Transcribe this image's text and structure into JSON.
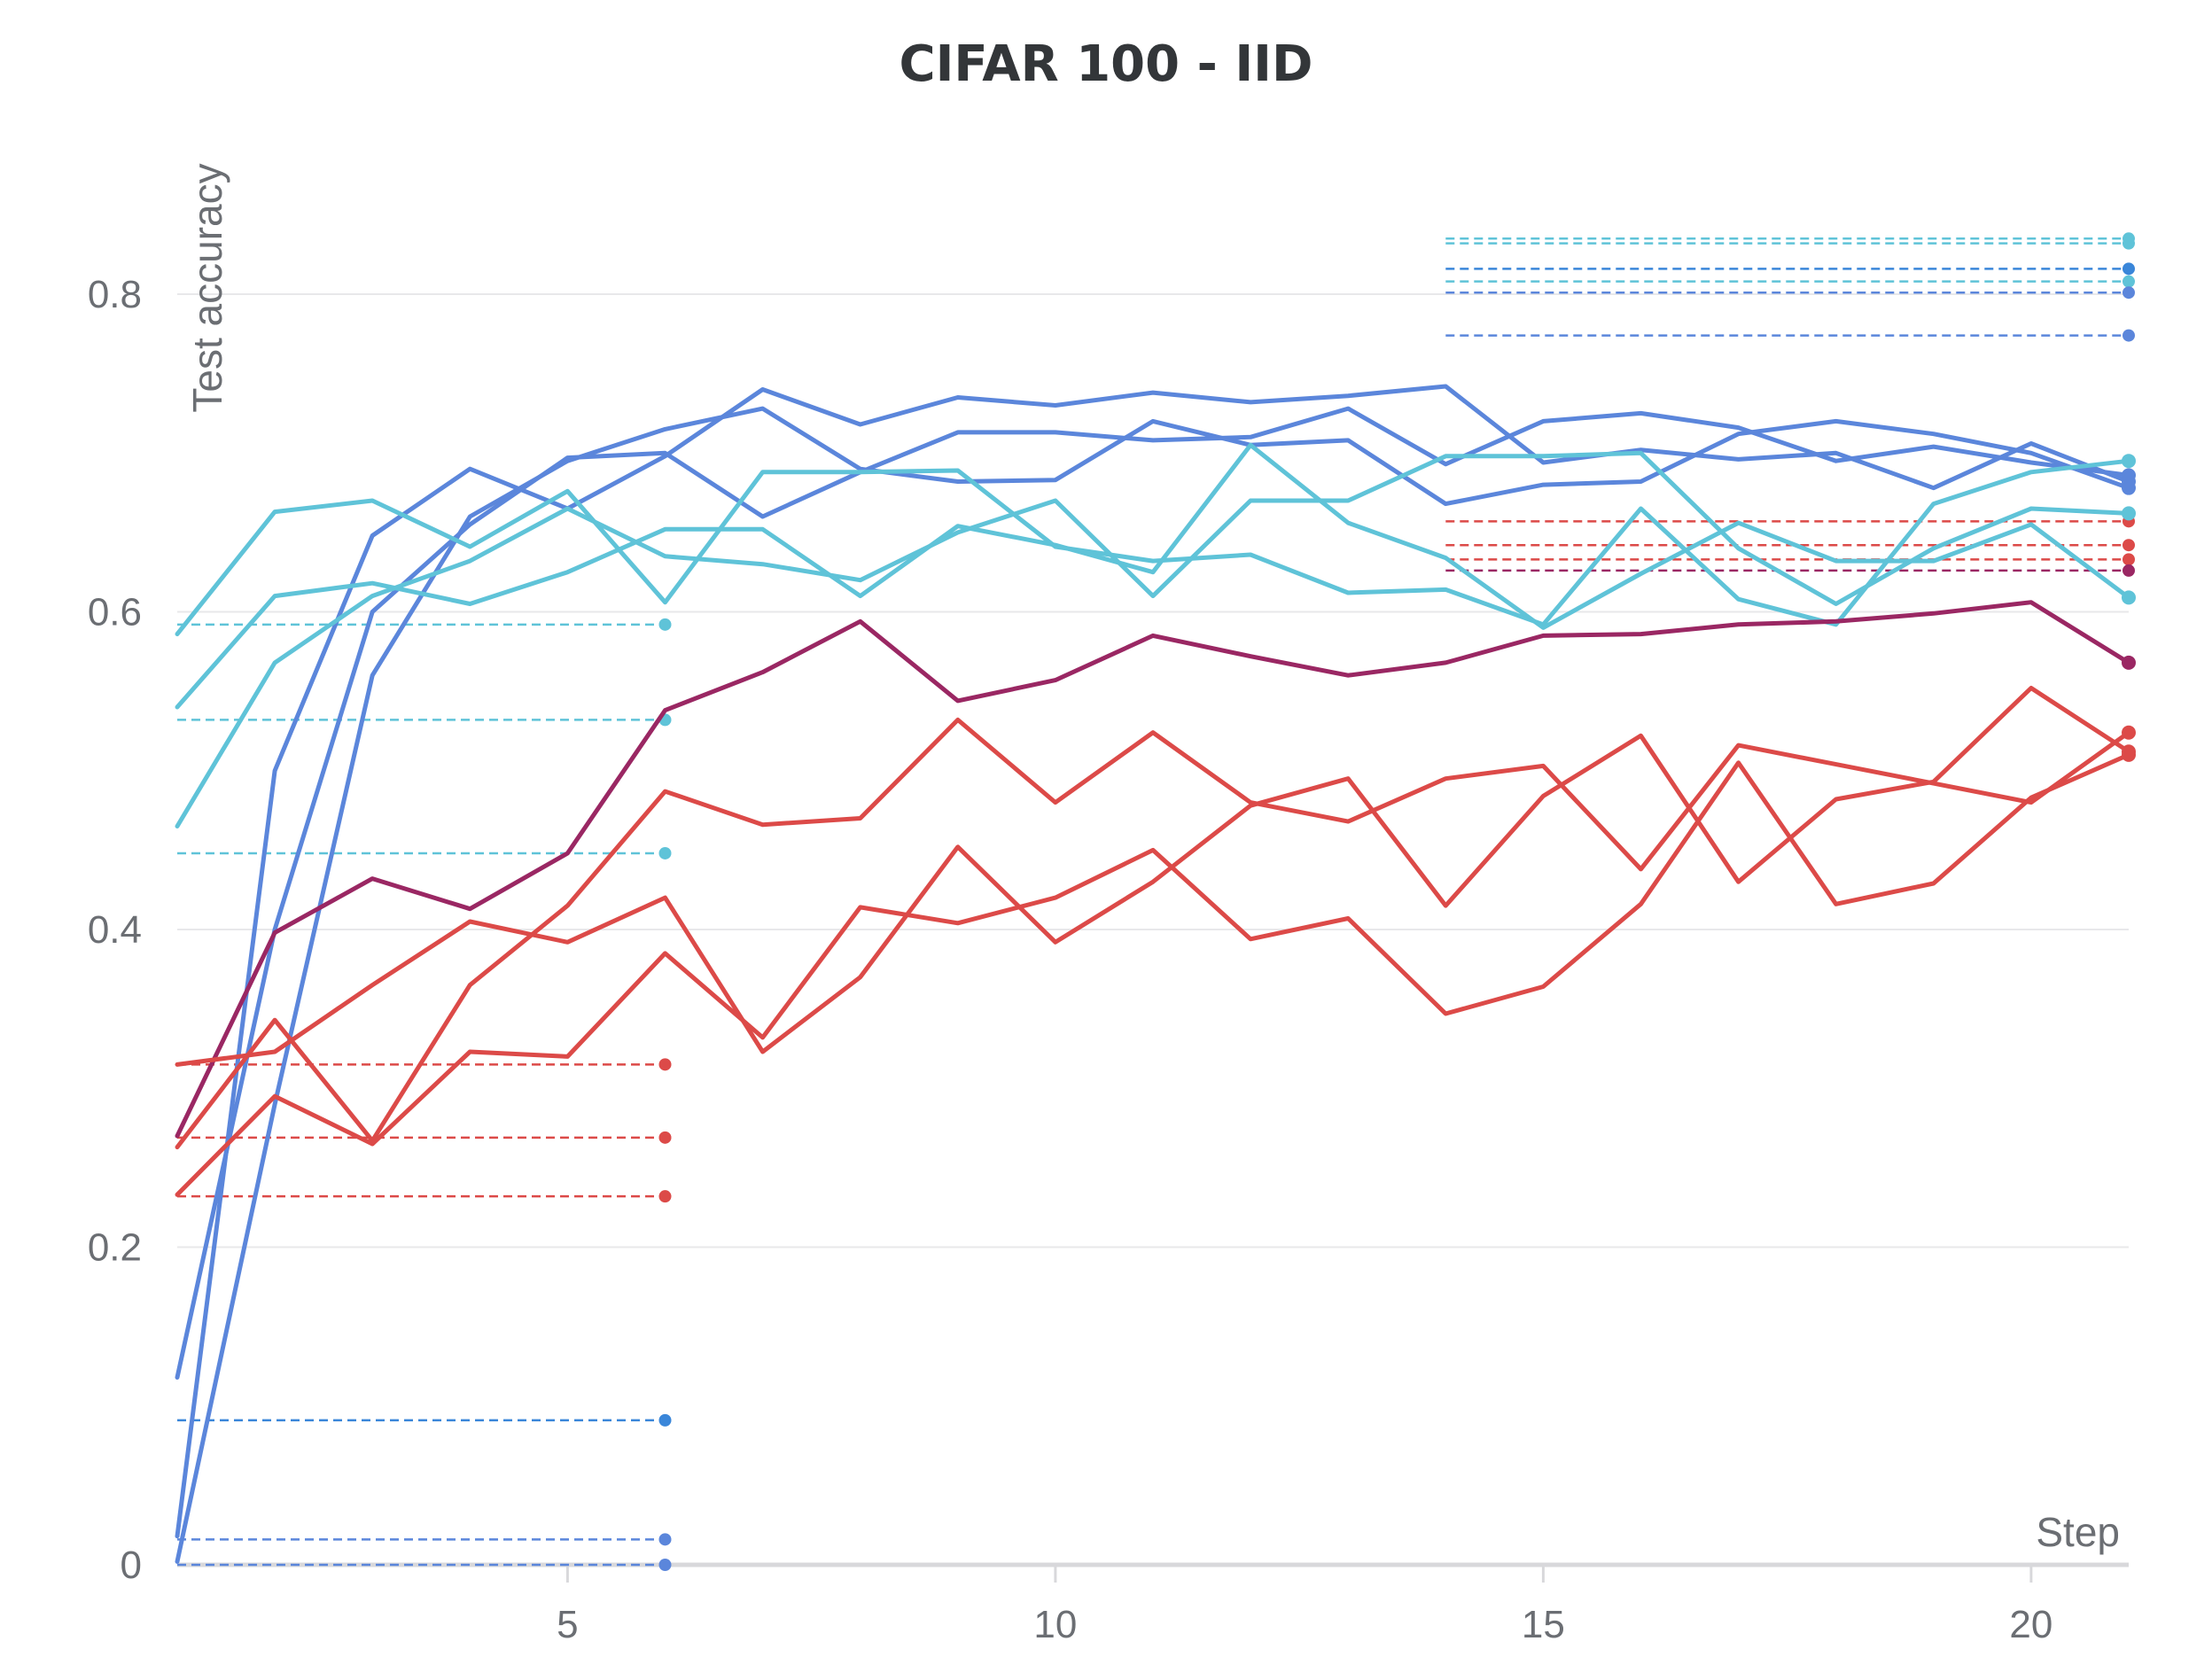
{
  "chart_data": {
    "type": "line",
    "title": "CIFAR 100 - IID",
    "xlabel": "Step",
    "ylabel": "Test accuracy",
    "xlim": [
      1,
      21
    ],
    "ylim": [
      0,
      0.88
    ],
    "x_ticks": [
      5,
      10,
      15,
      20
    ],
    "x_tick_labels": [
      "5",
      "10",
      "15",
      "20"
    ],
    "y_ticks": [
      0,
      0.2,
      0.4,
      0.6,
      0.8
    ],
    "y_tick_labels": [
      "0",
      "0.2",
      "0.4",
      "0.6",
      "0.8"
    ],
    "grid": true,
    "legend": "none",
    "series": [
      {
        "color": "#5b86db",
        "x": [
          1,
          2,
          3,
          4,
          5,
          6,
          7,
          8,
          9,
          10,
          11,
          12,
          13,
          14,
          15,
          16,
          17,
          18,
          19,
          20,
          21
        ],
        "values": [
          0.002,
          0.29,
          0.56,
          0.66,
          0.695,
          0.715,
          0.728,
          0.69,
          0.682,
          0.683,
          0.72,
          0.705,
          0.708,
          0.668,
          0.68,
          0.682,
          0.712,
          0.72,
          0.712,
          0.7,
          0.678
        ]
      },
      {
        "color": "#5b86db",
        "x": [
          1,
          2,
          3,
          4,
          5,
          6,
          7,
          8,
          9,
          10,
          11,
          12,
          13,
          14,
          15,
          16,
          17,
          18,
          19,
          20,
          21
        ],
        "values": [
          0.018,
          0.5,
          0.648,
          0.69,
          0.665,
          0.698,
          0.74,
          0.718,
          0.735,
          0.73,
          0.738,
          0.732,
          0.736,
          0.742,
          0.694,
          0.702,
          0.696,
          0.7,
          0.678,
          0.706,
          0.682
        ]
      },
      {
        "color": "#5b86db",
        "x": [
          1,
          2,
          3,
          4,
          5,
          6,
          7,
          8,
          9,
          10,
          11,
          12,
          13,
          14,
          15,
          16,
          17,
          18,
          19,
          20,
          21
        ],
        "values": [
          0.118,
          0.4,
          0.6,
          0.655,
          0.697,
          0.7,
          0.66,
          0.688,
          0.713,
          0.713,
          0.708,
          0.71,
          0.728,
          0.693,
          0.72,
          0.725,
          0.716,
          0.695,
          0.704,
          0.694,
          0.686
        ]
      },
      {
        "color": "#5fc3d8",
        "x": [
          1,
          2,
          3,
          4,
          5,
          6,
          7,
          8,
          9,
          10,
          11,
          12,
          13,
          14,
          15,
          16,
          17,
          18,
          19,
          20,
          21
        ],
        "values": [
          0.586,
          0.663,
          0.67,
          0.641,
          0.676,
          0.606,
          0.688,
          0.688,
          0.689,
          0.641,
          0.632,
          0.636,
          0.612,
          0.614,
          0.592,
          0.665,
          0.608,
          0.592,
          0.668,
          0.688,
          0.695
        ]
      },
      {
        "color": "#5fc3d8",
        "x": [
          1,
          2,
          3,
          4,
          5,
          6,
          7,
          8,
          9,
          10,
          11,
          12,
          13,
          14,
          15,
          16,
          17,
          18,
          19,
          20,
          21
        ],
        "values": [
          0.54,
          0.61,
          0.618,
          0.605,
          0.625,
          0.652,
          0.652,
          0.61,
          0.654,
          0.642,
          0.625,
          0.705,
          0.656,
          0.634,
          0.59,
          0.624,
          0.656,
          0.632,
          0.632,
          0.655,
          0.609
        ]
      },
      {
        "color": "#5fc3d8",
        "x": [
          1,
          2,
          3,
          4,
          5,
          6,
          7,
          8,
          9,
          10,
          11,
          12,
          13,
          14,
          15,
          16,
          17,
          18,
          19,
          20,
          21
        ],
        "values": [
          0.465,
          0.568,
          0.61,
          0.632,
          0.665,
          0.635,
          0.63,
          0.62,
          0.65,
          0.67,
          0.61,
          0.67,
          0.67,
          0.698,
          0.698,
          0.7,
          0.64,
          0.605,
          0.64,
          0.665,
          0.662
        ]
      },
      {
        "color": "#9a2763",
        "x": [
          1,
          2,
          3,
          4,
          5,
          6,
          7,
          8,
          9,
          10,
          11,
          12,
          13,
          14,
          15,
          16,
          17,
          18,
          19,
          20,
          21
        ],
        "values": [
          0.27,
          0.398,
          0.432,
          0.413,
          0.448,
          0.538,
          0.562,
          0.594,
          0.544,
          0.557,
          0.585,
          0.572,
          0.56,
          0.568,
          0.585,
          0.586,
          0.592,
          0.594,
          0.599,
          0.606,
          0.568
        ]
      },
      {
        "color": "#dc4a48",
        "x": [
          1,
          2,
          3,
          4,
          5,
          6,
          7,
          8,
          9,
          10,
          11,
          12,
          13,
          14,
          15,
          16,
          17,
          18,
          19,
          20,
          21
        ],
        "values": [
          0.315,
          0.323,
          0.365,
          0.405,
          0.392,
          0.42,
          0.323,
          0.37,
          0.452,
          0.392,
          0.43,
          0.478,
          0.495,
          0.415,
          0.484,
          0.522,
          0.43,
          0.482,
          0.493,
          0.552,
          0.512
        ]
      },
      {
        "color": "#dc4a48",
        "x": [
          1,
          2,
          3,
          4,
          5,
          6,
          7,
          8,
          9,
          10,
          11,
          12,
          13,
          14,
          15,
          16,
          17,
          18,
          19,
          20,
          21
        ],
        "values": [
          0.263,
          0.343,
          0.267,
          0.365,
          0.415,
          0.487,
          0.466,
          0.47,
          0.532,
          0.48,
          0.524,
          0.48,
          0.468,
          0.495,
          0.503,
          0.438,
          0.516,
          0.504,
          0.492,
          0.48,
          0.524
        ]
      },
      {
        "color": "#dc4a48",
        "x": [
          1,
          2,
          3,
          4,
          5,
          6,
          7,
          8,
          9,
          10,
          11,
          12,
          13,
          14,
          15,
          16,
          17,
          18,
          19,
          20,
          21
        ],
        "values": [
          0.233,
          0.295,
          0.265,
          0.323,
          0.32,
          0.385,
          0.332,
          0.414,
          0.404,
          0.42,
          0.45,
          0.394,
          0.407,
          0.347,
          0.364,
          0.416,
          0.505,
          0.416,
          0.429,
          0.483,
          0.51
        ]
      }
    ],
    "reference_lines": [
      {
        "color": "#5fc3d8",
        "x_start": 1,
        "x_end": 6,
        "value": 0.592
      },
      {
        "color": "#5fc3d8",
        "x_start": 1,
        "x_end": 6,
        "value": 0.532
      },
      {
        "color": "#5fc3d8",
        "x_start": 1,
        "x_end": 6,
        "value": 0.448
      },
      {
        "color": "#dc4a48",
        "x_start": 1,
        "x_end": 6,
        "value": 0.315
      },
      {
        "color": "#dc4a48",
        "x_start": 1,
        "x_end": 6,
        "value": 0.269
      },
      {
        "color": "#dc4a48",
        "x_start": 1,
        "x_end": 6,
        "value": 0.232
      },
      {
        "color": "#3a86d9",
        "x_start": 1,
        "x_end": 6,
        "value": 0.091
      },
      {
        "color": "#5b86db",
        "x_start": 1,
        "x_end": 6,
        "value": 0.016
      },
      {
        "color": "#5b86db",
        "x_start": 1,
        "x_end": 6,
        "value": 0.0
      },
      {
        "color": "#5fc3d8",
        "x_start": 14,
        "x_end": 21,
        "value": 0.835
      },
      {
        "color": "#5fc3d8",
        "x_start": 14,
        "x_end": 21,
        "value": 0.832
      },
      {
        "color": "#3a86d9",
        "x_start": 14,
        "x_end": 21,
        "value": 0.816
      },
      {
        "color": "#5fc3d8",
        "x_start": 14,
        "x_end": 21,
        "value": 0.808
      },
      {
        "color": "#5b86db",
        "x_start": 14,
        "x_end": 21,
        "value": 0.801
      },
      {
        "color": "#5b86db",
        "x_start": 14,
        "x_end": 21,
        "value": 0.774
      },
      {
        "color": "#dc4a48",
        "x_start": 14,
        "x_end": 21,
        "value": 0.657
      },
      {
        "color": "#dc4a48",
        "x_start": 14,
        "x_end": 21,
        "value": 0.642
      },
      {
        "color": "#dc4a48",
        "x_start": 14,
        "x_end": 21,
        "value": 0.633
      },
      {
        "color": "#9a2763",
        "x_start": 14,
        "x_end": 21,
        "value": 0.626
      }
    ]
  }
}
